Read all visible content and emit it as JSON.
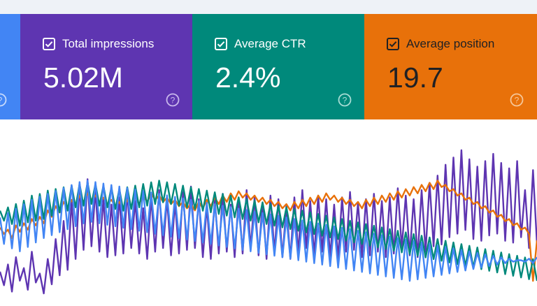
{
  "cards": {
    "impressions": {
      "label": "Total impressions",
      "value": "5.02M",
      "checked": true,
      "color": "#5e35b1"
    },
    "ctr": {
      "label": "Average CTR",
      "value": "2.4%",
      "checked": true,
      "color": "#00897b"
    },
    "position": {
      "label": "Average position",
      "value": "19.7",
      "checked": true,
      "color": "#e8710a"
    },
    "clicks_partial": {
      "color": "#4285f4"
    }
  },
  "icons": {
    "checkbox": "checkbox-checked-icon",
    "help": "help-circle-icon"
  },
  "chart_data": {
    "type": "line",
    "grid": false,
    "series": [
      {
        "color": "#5e35b1",
        "values": [
          70,
          55,
          78,
          48,
          86,
          60,
          74,
          50,
          92,
          58,
          68,
          46,
          84,
          56,
          106,
          66,
          126,
          72,
          148,
          84,
          165,
          94,
          172,
          98,
          160,
          92,
          150,
          86,
          144,
          88,
          152,
          90,
          158,
          96,
          148,
          90,
          140,
          84,
          152,
          92,
          160,
          96,
          150,
          88,
          146,
          90,
          158,
          94,
          164,
          96,
          150,
          86,
          142,
          84,
          150,
          90,
          156,
          92,
          144,
          86,
          150,
          90,
          160,
          96,
          152,
          88,
          146,
          84,
          154,
          92,
          150,
          86,
          142,
          84,
          152,
          90,
          160,
          96,
          148,
          88,
          154,
          92,
          150,
          86,
          144,
          84,
          152,
          92,
          158,
          94,
          146,
          86,
          150,
          88,
          156,
          92,
          148,
          86,
          152,
          90,
          162,
          96,
          154,
          88,
          150,
          86,
          160,
          92,
          168,
          98,
          176,
          100,
          188,
          108,
          196,
          112,
          204,
          116,
          194,
          106,
          186,
          104,
          192,
          110,
          200,
          112,
          190,
          104,
          184,
          102,
          192,
          108,
          160,
          96,
          182,
          100
        ]
      },
      {
        "color": "#e8710a",
        "values": [
          110,
          104,
          108,
          100,
          112,
          106,
          114,
          108,
          118,
          112,
          120,
          114,
          126,
          120,
          130,
          124,
          134,
          128,
          136,
          130,
          140,
          134,
          142,
          136,
          140,
          134,
          138,
          132,
          136,
          130,
          134,
          128,
          136,
          130,
          138,
          132,
          140,
          134,
          142,
          136,
          140,
          134,
          138,
          132,
          136,
          130,
          134,
          128,
          132,
          126,
          134,
          128,
          136,
          130,
          138,
          132,
          140,
          134,
          142,
          136,
          144,
          138,
          142,
          136,
          140,
          134,
          138,
          132,
          136,
          130,
          134,
          128,
          132,
          126,
          134,
          128,
          136,
          130,
          138,
          132,
          140,
          134,
          142,
          136,
          140,
          134,
          138,
          132,
          136,
          130,
          134,
          128,
          136,
          130,
          138,
          132,
          140,
          134,
          142,
          136,
          144,
          138,
          146,
          140,
          148,
          142,
          150,
          144,
          152,
          146,
          154,
          148,
          150,
          144,
          146,
          140,
          142,
          136,
          138,
          132,
          134,
          128,
          130,
          124,
          126,
          120,
          122,
          116,
          118,
          112,
          114,
          108,
          110,
          104,
          60,
          98
        ]
      },
      {
        "color": "#00897b",
        "values": [
          92,
          80,
          96,
          76,
          100,
          74,
          104,
          78,
          110,
          80,
          112,
          82,
          116,
          86,
          118,
          90,
          120,
          92,
          122,
          96,
          124,
          98,
          126,
          100,
          124,
          98,
          122,
          96,
          120,
          94,
          118,
          92,
          120,
          94,
          122,
          96,
          124,
          98,
          126,
          100,
          128,
          102,
          126,
          100,
          124,
          98,
          122,
          96,
          120,
          94,
          118,
          92,
          116,
          90,
          114,
          88,
          112,
          86,
          110,
          84,
          108,
          82,
          106,
          80,
          104,
          78,
          102,
          76,
          100,
          74,
          98,
          72,
          96,
          70,
          94,
          68,
          92,
          66,
          90,
          64,
          88,
          62,
          86,
          60,
          84,
          58,
          82,
          56,
          80,
          54,
          78,
          52,
          76,
          50,
          74,
          48,
          72,
          46,
          70,
          44,
          68,
          42,
          66,
          40,
          64,
          38,
          62,
          36,
          60,
          34,
          58,
          32,
          56,
          30,
          54,
          28,
          52,
          26,
          50,
          24,
          48,
          22,
          46,
          20,
          44,
          18,
          42,
          16,
          40,
          14,
          38,
          12,
          36,
          10,
          34,
          8
        ]
      },
      {
        "color": "#4285f4",
        "values": [
          86,
          50,
          92,
          44,
          98,
          40,
          104,
          46,
          110,
          52,
          114,
          58,
          118,
          62,
          122,
          66,
          126,
          70,
          130,
          74,
          134,
          78,
          136,
          80,
          134,
          78,
          132,
          76,
          130,
          74,
          128,
          72,
          126,
          70,
          124,
          68,
          122,
          66,
          120,
          64,
          118,
          62,
          116,
          60,
          114,
          58,
          112,
          56,
          110,
          54,
          108,
          52,
          106,
          50,
          104,
          48,
          102,
          46,
          100,
          44,
          98,
          42,
          96,
          40,
          94,
          38,
          92,
          36,
          90,
          34,
          88,
          32,
          86,
          30,
          84,
          28,
          82,
          26,
          80,
          24,
          78,
          22,
          76,
          20,
          74,
          18,
          72,
          16,
          70,
          14,
          68,
          12,
          66,
          10,
          64,
          8,
          62,
          6,
          60,
          4,
          58,
          2,
          56,
          0,
          54,
          2,
          52,
          4,
          50,
          6,
          48,
          8,
          46,
          10,
          44,
          12,
          42,
          14,
          40,
          16,
          38,
          18,
          36,
          20,
          34,
          22,
          32,
          24,
          30,
          26,
          28,
          28,
          26,
          30,
          24,
          32
        ]
      }
    ]
  }
}
